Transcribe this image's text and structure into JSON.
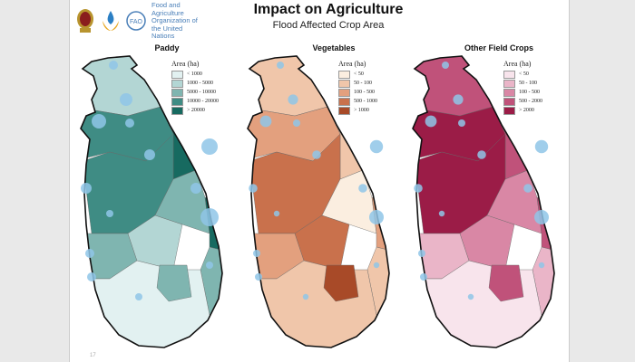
{
  "header": {
    "title": "Impact on Agriculture",
    "subtitle": "Flood Affected Crop Area",
    "logos": [
      "sri-lanka-emblem",
      "disaster-management-logo",
      "fao-logo"
    ],
    "fao_text": "Food and Agriculture Organization of the United Nations"
  },
  "panels": [
    {
      "title": "Paddy",
      "legend_title": "Area (ha)",
      "legend": [
        "< 1000",
        "1000 - 5000",
        "5000 - 10000",
        "10000 - 20000",
        "> 20000"
      ],
      "colors": [
        "#e2f1f1",
        "#b3d6d4",
        "#7fb5b0",
        "#3f8c84",
        "#176a60"
      ]
    },
    {
      "title": "Vegetables",
      "legend_title": "Area (ha)",
      "legend": [
        "< 50",
        "50 - 100",
        "100 - 500",
        "500 - 1000",
        "> 1000"
      ],
      "colors": [
        "#fbeee0",
        "#f0c6aa",
        "#e3a07e",
        "#c9714c",
        "#a84a28"
      ]
    },
    {
      "title": "Other Field Crops",
      "legend_title": "Area (ha)",
      "legend": [
        "< 50",
        "50 - 100",
        "100 - 500",
        "500 - 2000",
        "> 2000"
      ],
      "colors": [
        "#f8e4ec",
        "#eab5c8",
        "#d987a5",
        "#c0527a",
        "#9b1c47"
      ]
    }
  ],
  "bubble_color": "#8fc6e8",
  "page_number": "17"
}
